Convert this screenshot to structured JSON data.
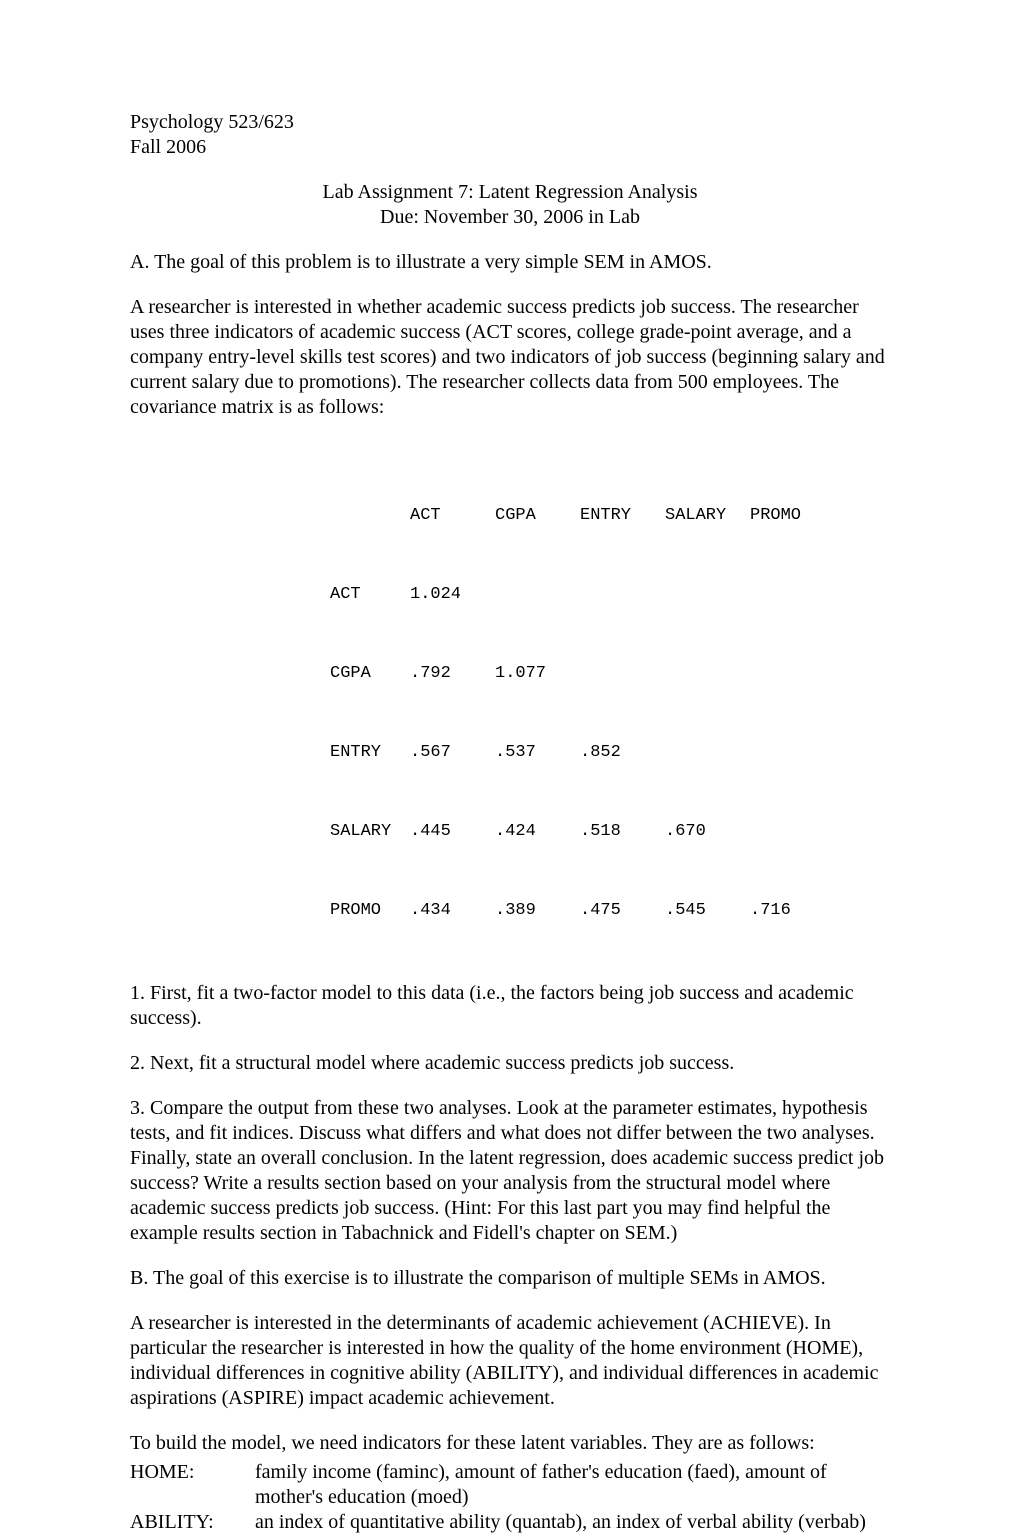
{
  "header": {
    "course": "Psychology 523/623",
    "term": "Fall 2006"
  },
  "title": {
    "line1": "Lab Assignment 7:  Latent Regression Analysis",
    "line2": "Due:  November 30, 2006 in Lab"
  },
  "sectionA": {
    "intro": "A.  The goal of this problem is to illustrate a very simple SEM in AMOS.",
    "body": "A researcher is interested in whether academic success predicts job success.  The researcher uses three indicators of academic success (ACT scores, college grade-point average, and a company entry-level skills test scores) and two indicators of job success (beginning salary and current salary due to promotions).  The researcher collects data from 500 employees.  The covariance matrix is as follows:"
  },
  "covTable": {
    "headers": [
      "",
      "ACT",
      "CGPA",
      "ENTRY",
      "SALARY",
      "PROMO"
    ],
    "rows": [
      {
        "label": "ACT",
        "cells": [
          "1.024",
          "",
          "",
          "",
          ""
        ]
      },
      {
        "label": "CGPA",
        "cells": [
          ".792",
          "1.077",
          "",
          "",
          ""
        ]
      },
      {
        "label": "ENTRY",
        "cells": [
          ".567",
          ".537",
          ".852",
          "",
          ""
        ]
      },
      {
        "label": "SALARY",
        "cells": [
          ".445",
          ".424",
          ".518",
          ".670",
          ""
        ]
      },
      {
        "label": "PROMO",
        "cells": [
          ".434",
          ".389",
          ".475",
          ".545",
          ".716"
        ]
      }
    ]
  },
  "questions": {
    "q1": "1.  First, fit a two-factor model to this data (i.e., the factors being job success and academic success).",
    "q2": "2.  Next, fit a structural model where academic success predicts job success.",
    "q3": "3.  Compare the output from these two analyses.  Look at the parameter estimates, hypothesis tests, and fit indices.  Discuss what differs and what does not differ between the two analyses.  Finally, state an overall conclusion.  In the latent regression, does academic success predict job success?  Write a results section based on your analysis from the structural model where academic success predicts job success.  (Hint: For this last part you may find helpful the example results section in Tabachnick and Fidell's chapter on SEM.)"
  },
  "sectionB": {
    "intro": "B.  The goal of this exercise is to illustrate the comparison of multiple SEMs in AMOS.",
    "body": "A researcher is interested in the determinants of academic achievement (ACHIEVE).  In particular the researcher is interested in how the quality of the home environment (HOME), individual differences in cognitive ability (ABILITY), and individual differences in academic aspirations (ASPIRE) impact academic achievement.",
    "indicatorsIntro": "To build the model, we need indicators for these latent variables.  They are as follows:",
    "indicators": [
      {
        "label": "HOME:",
        "desc": "family income (faminc), amount of father's education (faed), amount of mother's education (moed)"
      },
      {
        "label": "ABILITY:",
        "desc": "an index of quantitative ability (quantab), an index of verbal ability (verbab)"
      }
    ]
  }
}
